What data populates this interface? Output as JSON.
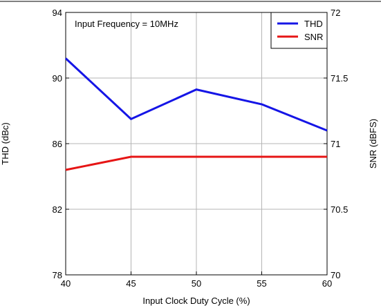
{
  "chart_data": {
    "type": "line",
    "annotation": "Input Frequency = 10MHz",
    "xlabel": "Input Clock Duty Cycle (%)",
    "ylabel_left": "THD (dBc)",
    "ylabel_right": "SNR (dBFS)",
    "x": [
      40,
      45,
      50,
      55,
      60
    ],
    "x_ticks": [
      "40",
      "45",
      "50",
      "55",
      "60"
    ],
    "xlim": [
      40,
      60
    ],
    "ylim_left": [
      78,
      94
    ],
    "ylim_right": [
      70,
      72
    ],
    "y_ticks_left": [
      "78",
      "82",
      "86",
      "90",
      "94"
    ],
    "y_ticks_right": [
      "70",
      "70.5",
      "71",
      "71.5",
      "72"
    ],
    "grid": "on",
    "legend_position": "top-right",
    "series": [
      {
        "name": "THD",
        "axis": "left",
        "color": "#1515e6",
        "values": [
          91.2,
          87.5,
          89.3,
          88.4,
          86.8
        ]
      },
      {
        "name": "SNR",
        "axis": "right",
        "color": "#e61515",
        "values": [
          70.8,
          70.9,
          70.9,
          70.9,
          70.9
        ]
      }
    ]
  }
}
